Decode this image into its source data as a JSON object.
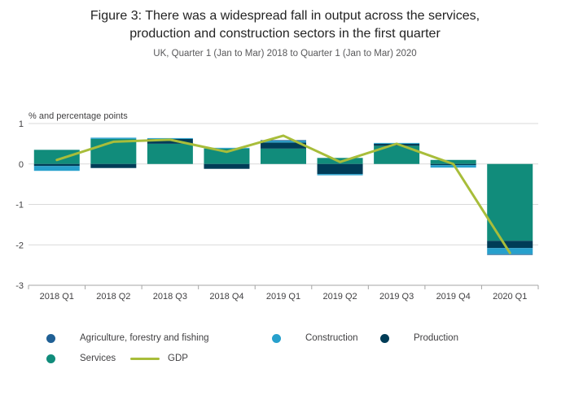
{
  "figure": {
    "title_line1": "Figure 3: There was a widespread fall in output across the services,",
    "title_line2": "production and construction sectors in the first quarter",
    "subtitle": "UK, Quarter 1 (Jan to Mar) 2018 to Quarter 1 (Jan to Mar) 2020"
  },
  "chart_data": {
    "type": "bar",
    "subtype": "stacked-bar-with-line",
    "title": "Figure 3: There was a widespread fall in output across the services, production and construction sectors in the first quarter",
    "subtitle": "UK, Quarter 1 (Jan to Mar) 2018 to Quarter 1 (Jan to Mar) 2020",
    "ylabel": "% and percentage points",
    "ylim": [
      -3,
      1
    ],
    "yticks": [
      1,
      0,
      -1,
      -2,
      -3
    ],
    "grid": true,
    "legend_position": "bottom",
    "categories": [
      "2018 Q1",
      "2018 Q2",
      "2018 Q3",
      "2018 Q4",
      "2019 Q1",
      "2019 Q2",
      "2019 Q3",
      "2019 Q4",
      "2020 Q1"
    ],
    "series": [
      {
        "name": "Services",
        "color": "#118C7B",
        "values": [
          0.35,
          0.62,
          0.5,
          0.38,
          0.38,
          0.15,
          0.45,
          0.1,
          -1.9
        ]
      },
      {
        "name": "Production",
        "color": "#003C57",
        "values": [
          -0.05,
          -0.1,
          0.12,
          -0.12,
          0.15,
          -0.25,
          0.05,
          -0.03,
          -0.18
        ]
      },
      {
        "name": "Construction",
        "color": "#27A0CC",
        "values": [
          -0.12,
          0.03,
          0.02,
          0.02,
          0.04,
          -0.03,
          0.02,
          -0.06,
          -0.15
        ]
      },
      {
        "name": "Agriculture, forestry and fishing",
        "color": "#206095",
        "values": [
          0,
          0,
          0,
          0,
          0.02,
          0,
          0,
          0,
          -0.02
        ]
      }
    ],
    "line_series": {
      "name": "GDP",
      "color": "#A8BD3A",
      "values": [
        0.1,
        0.55,
        0.6,
        0.3,
        0.7,
        0.05,
        0.5,
        0.0,
        -2.2
      ]
    }
  },
  "legend": {
    "items": [
      {
        "label": "Agriculture, forestry and fishing",
        "color": "#206095",
        "marker": "dot"
      },
      {
        "label": "Construction",
        "color": "#27A0CC",
        "marker": "dot"
      },
      {
        "label": "Production",
        "color": "#003C57",
        "marker": "dot"
      },
      {
        "label": "Services",
        "color": "#118C7B",
        "marker": "dot"
      },
      {
        "label": "GDP",
        "color": "#A8BD3A",
        "marker": "line"
      }
    ]
  },
  "colors": {
    "grid": "#d9d9d9",
    "axis": "#a6a6a6",
    "tick_text": "#414042",
    "title_text": "#232323"
  }
}
